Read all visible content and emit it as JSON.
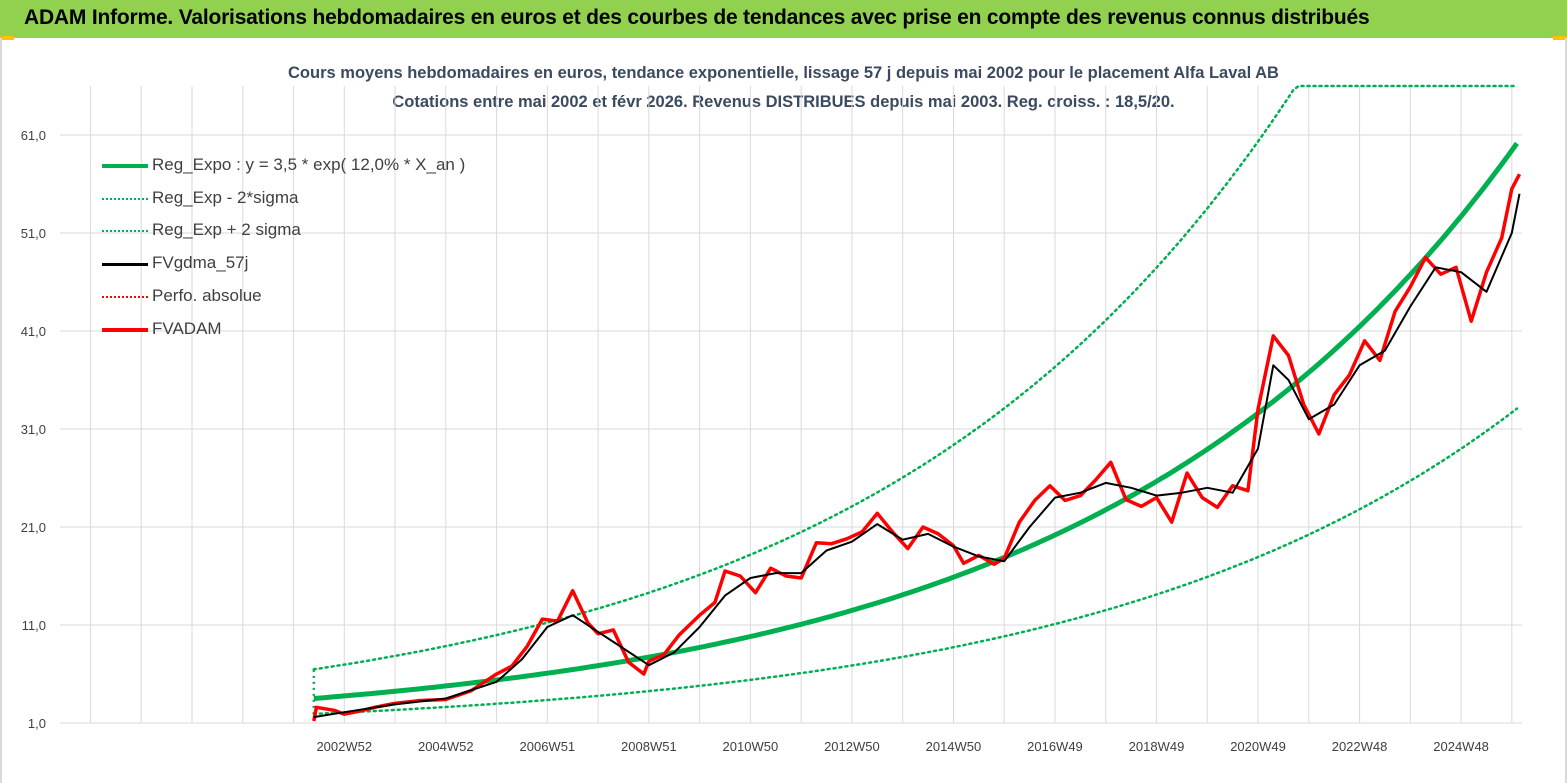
{
  "header": {
    "banner_text": "ADAM Informe. Valorisations hebdomadaires en euros et des courbes de tendances avec prise en compte des revenus connus distribués"
  },
  "colors": {
    "banner": "#92d050",
    "reg_expo": "#00b050",
    "fvadam": "#ff0000",
    "fvgdma": "#000000",
    "perfo": "#ff0000",
    "title": "#3b4a5e"
  },
  "chart_data": {
    "type": "line",
    "title_line1": "Cours moyens hebdomadaires en euros, tendance exponentielle, lissage 57 j depuis mai 2002 pour le placement Alfa Laval AB",
    "title_line2": "Cotations entre mai 2002 et févr 2026. Revenus DISTRIBUES depuis mai 2003. Reg. croiss. : 18,5/20.",
    "ylim": [
      1.0,
      66.0
    ],
    "xlim": [
      1997.4,
      2026.2
    ],
    "y_ticks": [
      "1,0",
      "11,0",
      "21,0",
      "31,0",
      "41,0",
      "51,0",
      "61,0"
    ],
    "y_tick_values": [
      1,
      11,
      21,
      31,
      41,
      51,
      61
    ],
    "x_ticks": [
      "2002W52",
      "2004W52",
      "2006W51",
      "2008W51",
      "2010W50",
      "2012W50",
      "2014W50",
      "2016W49",
      "2018W49",
      "2020W49",
      "2022W48",
      "2024W48"
    ],
    "x_tick_values": [
      2003.0,
      2005.0,
      2007.0,
      2009.0,
      2011.0,
      2013.0,
      2015.0,
      2017.0,
      2019.0,
      2021.0,
      2023.0,
      2025.0
    ],
    "grid": true,
    "legend_position": "top-left",
    "legend": [
      {
        "label": "Reg_Expo : y = 3,5 * exp( 12,0% *  X_an )",
        "style": "solid-thick",
        "color": "#00b050"
      },
      {
        "label": "Reg_Exp - 2*sigma",
        "style": "dotted",
        "color": "#00b050"
      },
      {
        "label": "Reg_Exp + 2 sigma",
        "style": "dotted",
        "color": "#00b050"
      },
      {
        "label": "FVgdma_57j",
        "style": "solid",
        "color": "#000000"
      },
      {
        "label": "Perfo. absolue",
        "style": "dotted",
        "color": "#ff0000"
      },
      {
        "label": "FVADAM",
        "style": "solid-thick",
        "color": "#ff0000"
      }
    ],
    "trend": {
      "a": 3.5,
      "rate": 0.12,
      "t0": 2002.4,
      "t_end": 2026.15,
      "lower_factor": 0.55,
      "upper_factor": 1.85
    },
    "series": [
      {
        "name": "FVADAM",
        "color": "#ff0000",
        "x": [
          2002.4,
          2002.45,
          2002.8,
          2003.0,
          2003.3,
          2003.6,
          2004.0,
          2004.5,
          2005.0,
          2005.5,
          2006.0,
          2006.3,
          2006.6,
          2006.9,
          2007.2,
          2007.5,
          2007.8,
          2008.0,
          2008.3,
          2008.6,
          2008.9,
          2009.0,
          2009.3,
          2009.6,
          2010.0,
          2010.3,
          2010.5,
          2010.8,
          2011.1,
          2011.4,
          2011.7,
          2012.0,
          2012.3,
          2012.6,
          2012.9,
          2013.2,
          2013.5,
          2013.8,
          2014.1,
          2014.4,
          2014.7,
          2015.0,
          2015.2,
          2015.5,
          2015.8,
          2016.0,
          2016.3,
          2016.6,
          2016.9,
          2017.2,
          2017.5,
          2017.8,
          2018.1,
          2018.4,
          2018.7,
          2019.0,
          2019.3,
          2019.6,
          2019.9,
          2020.2,
          2020.5,
          2020.8,
          2021.0,
          2021.3,
          2021.6,
          2021.9,
          2022.2,
          2022.5,
          2022.8,
          2023.1,
          2023.4,
          2023.7,
          2024.0,
          2024.3,
          2024.6,
          2024.9,
          2025.2,
          2025.5,
          2025.8,
          2026.0,
          2026.15
        ],
        "values": [
          1.2,
          2.6,
          2.3,
          1.9,
          2.2,
          2.6,
          3.0,
          3.3,
          3.4,
          4.3,
          6.0,
          6.8,
          8.8,
          11.6,
          11.4,
          14.5,
          11.2,
          10.1,
          10.5,
          7.2,
          6.0,
          7.3,
          8.0,
          10.0,
          12.0,
          13.3,
          16.5,
          16.0,
          14.3,
          16.8,
          16.0,
          15.8,
          19.4,
          19.3,
          19.8,
          20.5,
          22.4,
          20.5,
          18.8,
          21.0,
          20.3,
          19.1,
          17.3,
          18.1,
          17.2,
          17.8,
          21.5,
          23.7,
          25.2,
          23.7,
          24.2,
          25.8,
          27.6,
          23.8,
          23.1,
          24.0,
          21.5,
          26.5,
          24.0,
          23.0,
          25.2,
          24.7,
          33.0,
          40.5,
          38.5,
          33.5,
          30.5,
          34.5,
          36.5,
          40.0,
          38.0,
          43.0,
          45.5,
          48.5,
          46.8,
          47.5,
          42.0,
          47.0,
          50.5,
          55.5,
          57.0
        ]
      },
      {
        "name": "FVgdma_57j",
        "color": "#000000",
        "x": [
          2002.4,
          2003.0,
          2004.0,
          2005.0,
          2006.0,
          2006.5,
          2007.0,
          2007.5,
          2008.0,
          2008.5,
          2009.0,
          2009.5,
          2010.0,
          2010.5,
          2011.0,
          2011.5,
          2012.0,
          2012.5,
          2013.0,
          2013.5,
          2014.0,
          2014.5,
          2015.0,
          2015.5,
          2016.0,
          2016.5,
          2017.0,
          2017.5,
          2018.0,
          2018.5,
          2019.0,
          2019.5,
          2020.0,
          2020.5,
          2021.0,
          2021.3,
          2021.6,
          2022.0,
          2022.5,
          2023.0,
          2023.5,
          2024.0,
          2024.5,
          2025.0,
          2025.5,
          2026.0,
          2026.15
        ],
        "values": [
          1.6,
          2.1,
          2.9,
          3.5,
          5.2,
          7.5,
          10.8,
          12.0,
          10.3,
          8.6,
          6.9,
          8.2,
          10.8,
          14.0,
          15.8,
          16.3,
          16.3,
          18.6,
          19.5,
          21.3,
          19.7,
          20.3,
          19.0,
          18.0,
          17.5,
          21.0,
          24.0,
          24.5,
          25.5,
          25.0,
          24.2,
          24.5,
          25.0,
          24.5,
          29.0,
          37.5,
          36.0,
          32.0,
          33.5,
          37.5,
          39.0,
          43.5,
          47.5,
          47.0,
          45.0,
          51.0,
          55.0
        ]
      }
    ]
  }
}
